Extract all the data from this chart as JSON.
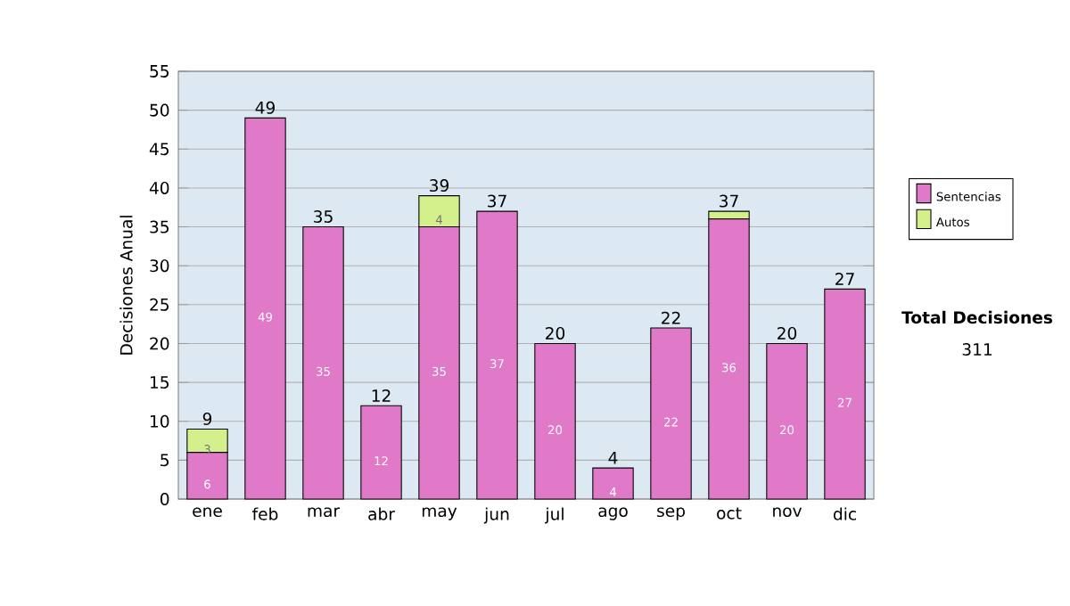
{
  "chart_data": {
    "type": "bar",
    "stacked": true,
    "ylabel": "Decisiones Anual",
    "categories": [
      "ene",
      "feb",
      "mar",
      "abr",
      "may",
      "jun",
      "jul",
      "ago",
      "sep",
      "oct",
      "nov",
      "dic"
    ],
    "series": [
      {
        "name": "Sentencias",
        "color": "#e07ac8",
        "values": [
          6,
          49,
          35,
          12,
          35,
          37,
          20,
          4,
          22,
          36,
          20,
          27
        ],
        "value_labels": [
          "6",
          "49",
          "35",
          "12",
          "35",
          "37",
          "20",
          "4",
          "22",
          "36",
          "20",
          "27"
        ]
      },
      {
        "name": "Autos",
        "color": "#d4f08c",
        "values": [
          3,
          null,
          null,
          null,
          4,
          null,
          null,
          null,
          null,
          1,
          null,
          null
        ],
        "value_labels": [
          "3",
          null,
          null,
          null,
          "4",
          null,
          null,
          null,
          null,
          null,
          null,
          null
        ]
      }
    ],
    "totals": [
      "9",
      "49",
      "35",
      "12",
      "39",
      "37",
      "20",
      "4",
      "22",
      "37",
      "20",
      "27"
    ],
    "ylim": [
      0,
      55
    ],
    "yticks": [
      0,
      5,
      10,
      15,
      20,
      25,
      30,
      35,
      40,
      45,
      50,
      55
    ],
    "grid": "y",
    "legend": "right",
    "annotations": [
      "Total Decisiones",
      "311"
    ]
  }
}
